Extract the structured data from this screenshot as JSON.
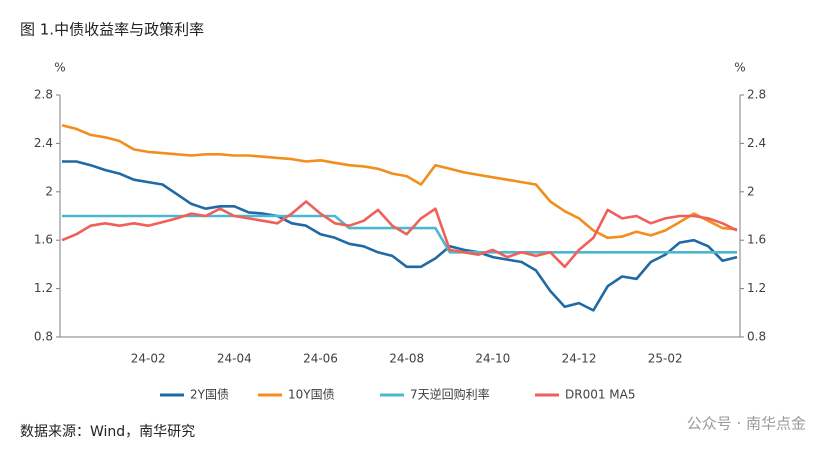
{
  "chart_data": {
    "type": "line",
    "title": "图 1.中债收益率与政策利率",
    "y_unit": "%",
    "y2_unit": "%",
    "source": "数据来源：Wind，南华研究",
    "watermark": "公众号 · 南华点金",
    "categories": [
      null,
      null,
      null,
      null,
      null,
      null,
      "24-02",
      null,
      null,
      null,
      null,
      null,
      "24-04",
      null,
      null,
      null,
      null,
      null,
      "24-06",
      null,
      null,
      null,
      null,
      null,
      "24-08",
      null,
      null,
      null,
      null,
      null,
      "24-10",
      null,
      null,
      null,
      null,
      null,
      "24-12",
      null,
      null,
      null,
      null,
      null,
      "25-02",
      null,
      null,
      null,
      null,
      null
    ],
    "ylim": [
      0.8,
      2.8
    ],
    "yticks": [
      0.8,
      1.2,
      1.6,
      2,
      2.4,
      2.8
    ],
    "y2lim": [
      0.8,
      2.8
    ],
    "y2ticks": [
      0.8,
      1.2,
      1.6,
      2,
      2.4,
      2.8
    ],
    "series": [
      {
        "name": "2Y国债",
        "color": "#1f6aa5",
        "values": [
          2.25,
          2.25,
          2.22,
          2.18,
          2.15,
          2.1,
          2.08,
          2.06,
          1.98,
          1.9,
          1.86,
          1.88,
          1.88,
          1.83,
          1.82,
          1.8,
          1.74,
          1.72,
          1.65,
          1.62,
          1.57,
          1.55,
          1.5,
          1.47,
          1.38,
          1.38,
          1.45,
          1.55,
          1.52,
          1.5,
          1.46,
          1.44,
          1.42,
          1.35,
          1.18,
          1.05,
          1.08,
          1.02,
          1.22,
          1.3,
          1.28,
          1.42,
          1.48,
          1.58,
          1.6,
          1.55,
          1.43,
          1.46
        ]
      },
      {
        "name": "10Y国债",
        "color": "#f28e1c",
        "values": [
          2.55,
          2.52,
          2.47,
          2.45,
          2.42,
          2.35,
          2.33,
          2.32,
          2.31,
          2.3,
          2.31,
          2.31,
          2.3,
          2.3,
          2.29,
          2.28,
          2.27,
          2.25,
          2.26,
          2.24,
          2.22,
          2.21,
          2.19,
          2.15,
          2.13,
          2.06,
          2.22,
          2.19,
          2.16,
          2.14,
          2.12,
          2.1,
          2.08,
          2.06,
          1.92,
          1.84,
          1.78,
          1.68,
          1.62,
          1.63,
          1.67,
          1.64,
          1.68,
          1.75,
          1.82,
          1.76,
          1.7,
          1.69
        ]
      },
      {
        "name": "7天逆回购利率",
        "color": "#4bb8cf",
        "values": [
          1.8,
          1.8,
          1.8,
          1.8,
          1.8,
          1.8,
          1.8,
          1.8,
          1.8,
          1.8,
          1.8,
          1.8,
          1.8,
          1.8,
          1.8,
          1.8,
          1.8,
          1.8,
          1.8,
          1.8,
          1.7,
          1.7,
          1.7,
          1.7,
          1.7,
          1.7,
          1.7,
          1.5,
          1.5,
          1.5,
          1.5,
          1.5,
          1.5,
          1.5,
          1.5,
          1.5,
          1.5,
          1.5,
          1.5,
          1.5,
          1.5,
          1.5,
          1.5,
          1.5,
          1.5,
          1.5,
          1.5,
          1.5
        ]
      },
      {
        "name": "DR001 MA5",
        "color": "#f0605a",
        "values": [
          1.6,
          1.65,
          1.72,
          1.74,
          1.72,
          1.74,
          1.72,
          1.75,
          1.78,
          1.82,
          1.8,
          1.86,
          1.8,
          1.78,
          1.76,
          1.74,
          1.82,
          1.92,
          1.82,
          1.74,
          1.72,
          1.76,
          1.85,
          1.72,
          1.65,
          1.78,
          1.86,
          1.52,
          1.5,
          1.48,
          1.52,
          1.46,
          1.5,
          1.47,
          1.5,
          1.38,
          1.52,
          1.62,
          1.85,
          1.78,
          1.8,
          1.74,
          1.78,
          1.8,
          1.8,
          1.78,
          1.74,
          1.68
        ]
      }
    ]
  }
}
